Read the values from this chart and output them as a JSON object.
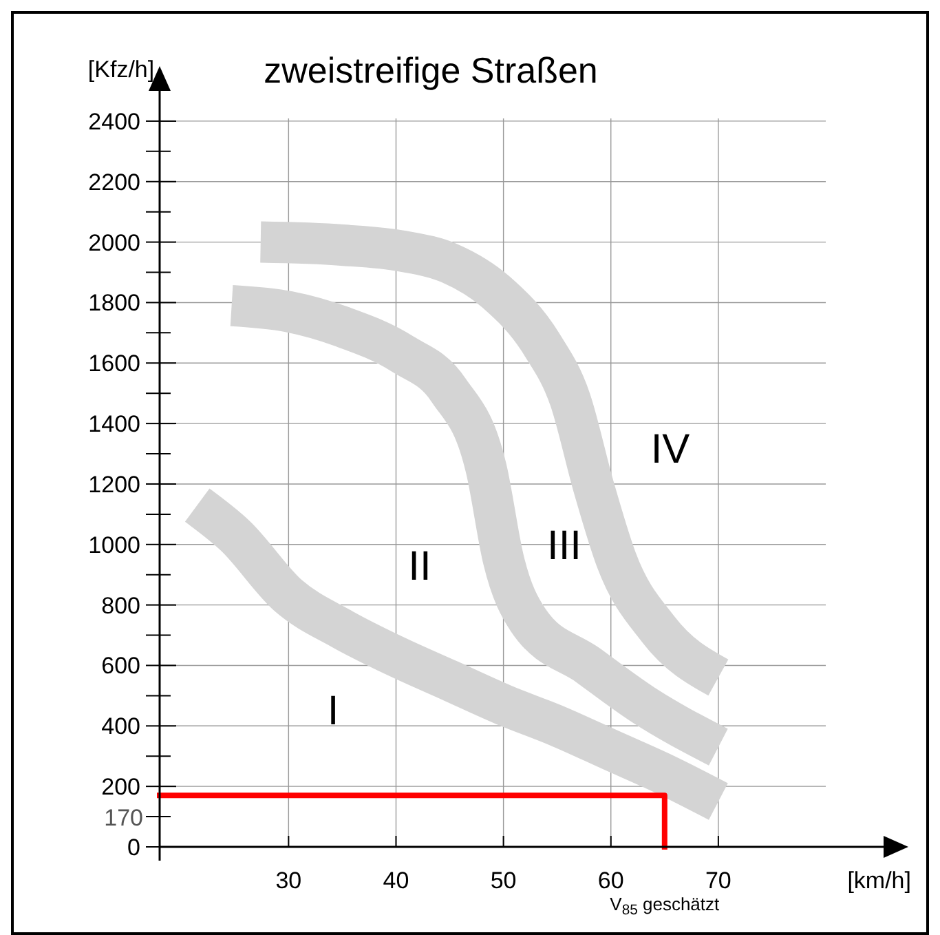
{
  "chart_data": {
    "type": "line",
    "title": "zweistreifige Straßen",
    "xlabel": "[km/h]",
    "ylabel": "[Kfz/h]",
    "xlim": [
      18,
      80
    ],
    "xticks": [
      30,
      40,
      50,
      60,
      70
    ],
    "ylim": [
      0,
      2500
    ],
    "yticks": [
      0,
      200,
      400,
      600,
      800,
      1000,
      1200,
      1400,
      1600,
      1800,
      2000,
      2200,
      2400
    ],
    "grid": true,
    "line_style": "solid",
    "series": [
      {
        "color": "#d4d4d4",
        "x": [
          21.5,
          25,
          30,
          35,
          40,
          45,
          50,
          55,
          60,
          65,
          70
        ],
        "values": [
          1130,
          1030,
          830,
          720,
          630,
          550,
          470,
          400,
          320,
          240,
          150
        ]
      },
      {
        "color": "#d4d4d4",
        "x": [
          24.7,
          30,
          35,
          40.6,
          44.9,
          48.4,
          50,
          52.3,
          57.9,
          63,
          70
        ],
        "values": [
          1790,
          1770,
          1720,
          1630,
          1510,
          1250,
          950,
          750,
          600,
          470,
          330
        ]
      },
      {
        "color": "#d4d4d4",
        "x": [
          27.4,
          35,
          40.6,
          45,
          49.3,
          53.6,
          56.2,
          58.4,
          60.5,
          64.4,
          70
        ],
        "values": [
          2000,
          1990,
          1970,
          1930,
          1835,
          1660,
          1480,
          1190,
          950,
          720,
          560
        ]
      },
      {
        "color": "#ff0000",
        "x": [
          18,
          65,
          65
        ],
        "values": [
          170,
          170,
          0
        ]
      }
    ],
    "annotations": [
      "I",
      "II",
      "III",
      "IV",
      {
        "text": "170",
        "x": 18,
        "y": 170
      },
      "V$_{85}$ geschätzt"
    ]
  }
}
